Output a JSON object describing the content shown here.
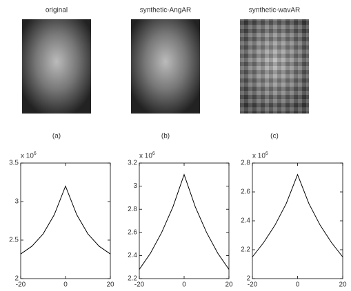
{
  "images": [
    {
      "title": "original",
      "caption": "(a)"
    },
    {
      "title": "synthetic-AngAR",
      "caption": "(b)"
    },
    {
      "title": "synthetic-wavAR",
      "caption": "(c)"
    }
  ],
  "chart_data": [
    {
      "type": "line",
      "scale_label": "x 10",
      "scale_exponent": "6",
      "color": "#000000",
      "x": [
        -20,
        -15,
        -10,
        -5,
        0,
        5,
        10,
        15,
        20
      ],
      "values": [
        2.32,
        2.42,
        2.58,
        2.83,
        3.2,
        2.83,
        2.58,
        2.42,
        2.32
      ],
      "xlim": [
        -20,
        20
      ],
      "xticks": [
        -20,
        0,
        20
      ],
      "ylim": [
        2,
        3.5
      ],
      "yticks": [
        2,
        2.5,
        3,
        3.5
      ]
    },
    {
      "type": "line",
      "scale_label": "x 10",
      "scale_exponent": "6",
      "color": "#000000",
      "x": [
        -20,
        -15,
        -10,
        -5,
        0,
        5,
        10,
        15,
        20
      ],
      "values": [
        2.28,
        2.42,
        2.6,
        2.82,
        3.1,
        2.82,
        2.6,
        2.42,
        2.28
      ],
      "xlim": [
        -20,
        20
      ],
      "xticks": [
        -20,
        0,
        20
      ],
      "ylim": [
        2.2,
        3.2
      ],
      "yticks": [
        2.2,
        2.4,
        2.6,
        2.8,
        3,
        3.2
      ]
    },
    {
      "type": "line",
      "scale_label": "x 10",
      "scale_exponent": "6",
      "color": "#000000",
      "x": [
        -20,
        -15,
        -10,
        -5,
        0,
        5,
        10,
        15,
        20
      ],
      "values": [
        2.15,
        2.25,
        2.37,
        2.52,
        2.72,
        2.52,
        2.37,
        2.25,
        2.15
      ],
      "xlim": [
        -20,
        20
      ],
      "xticks": [
        -20,
        0,
        20
      ],
      "ylim": [
        2,
        2.8
      ],
      "yticks": [
        2,
        2.2,
        2.4,
        2.6,
        2.8
      ]
    }
  ]
}
